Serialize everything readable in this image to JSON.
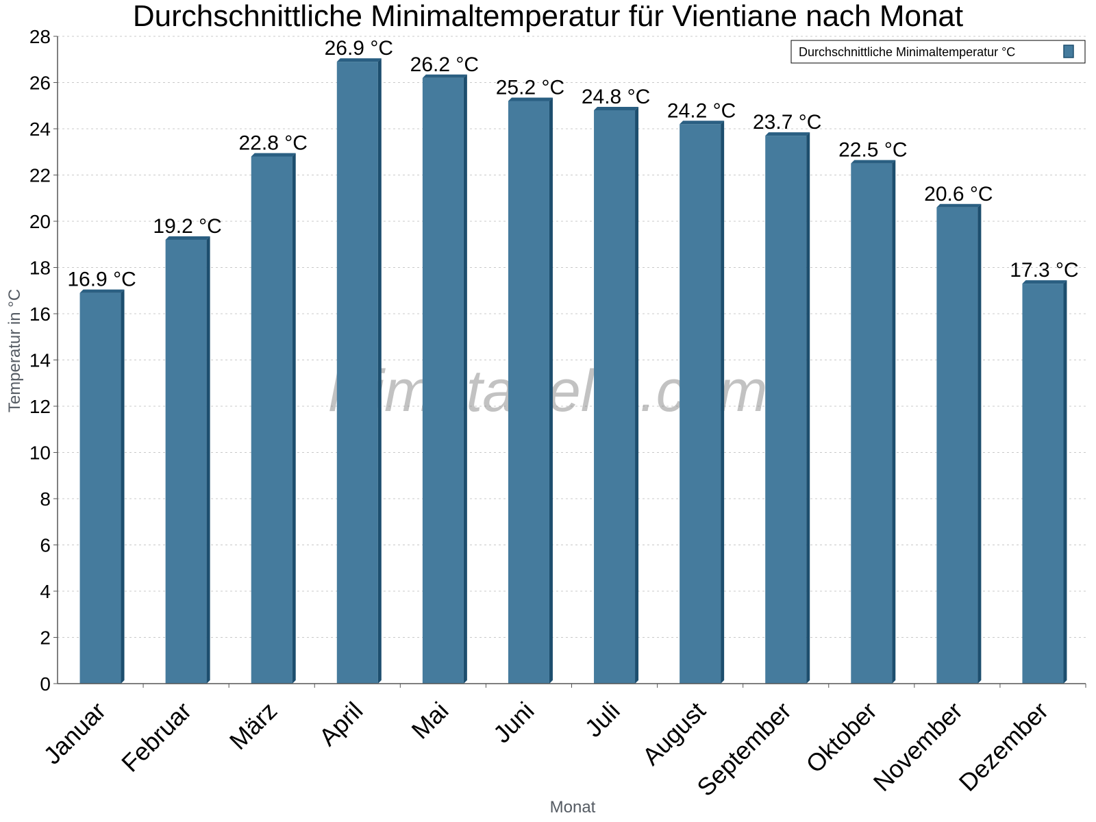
{
  "chart_data": {
    "type": "bar",
    "title": "Durchschnittliche Minimaltemperatur für Vientiane nach Monat",
    "xlabel": "Monat",
    "ylabel": "Temperatur in °C",
    "categories": [
      "Januar",
      "Februar",
      "März",
      "April",
      "Mai",
      "Juni",
      "Juli",
      "August",
      "September",
      "Oktober",
      "November",
      "Dezember"
    ],
    "series": [
      {
        "name": "Durchschnittliche Minimaltemperatur °C",
        "values": [
          16.9,
          19.2,
          22.8,
          26.9,
          26.2,
          25.2,
          24.8,
          24.2,
          23.7,
          22.5,
          20.6,
          17.3
        ],
        "labels": [
          "16.9 °C",
          "19.2 °C",
          "22.8 °C",
          "26.9 °C",
          "26.2 °C",
          "25.2 °C",
          "24.8 °C",
          "24.2 °C",
          "23.7 °C",
          "22.5 °C",
          "20.6 °C",
          "17.3 °C"
        ]
      }
    ],
    "ylim": [
      0,
      28
    ],
    "yticks": [
      0,
      2,
      4,
      6,
      8,
      10,
      12,
      14,
      16,
      18,
      20,
      22,
      24,
      26,
      28
    ],
    "grid": true,
    "legend_position": "top-right",
    "colors": {
      "bar_front": "#457b9d",
      "bar_side": "#1d4e6e",
      "bar_top": "#2a5f82",
      "grid": "#c8c8c8",
      "axis": "#555555"
    }
  },
  "watermark": "klimatabelle.com"
}
